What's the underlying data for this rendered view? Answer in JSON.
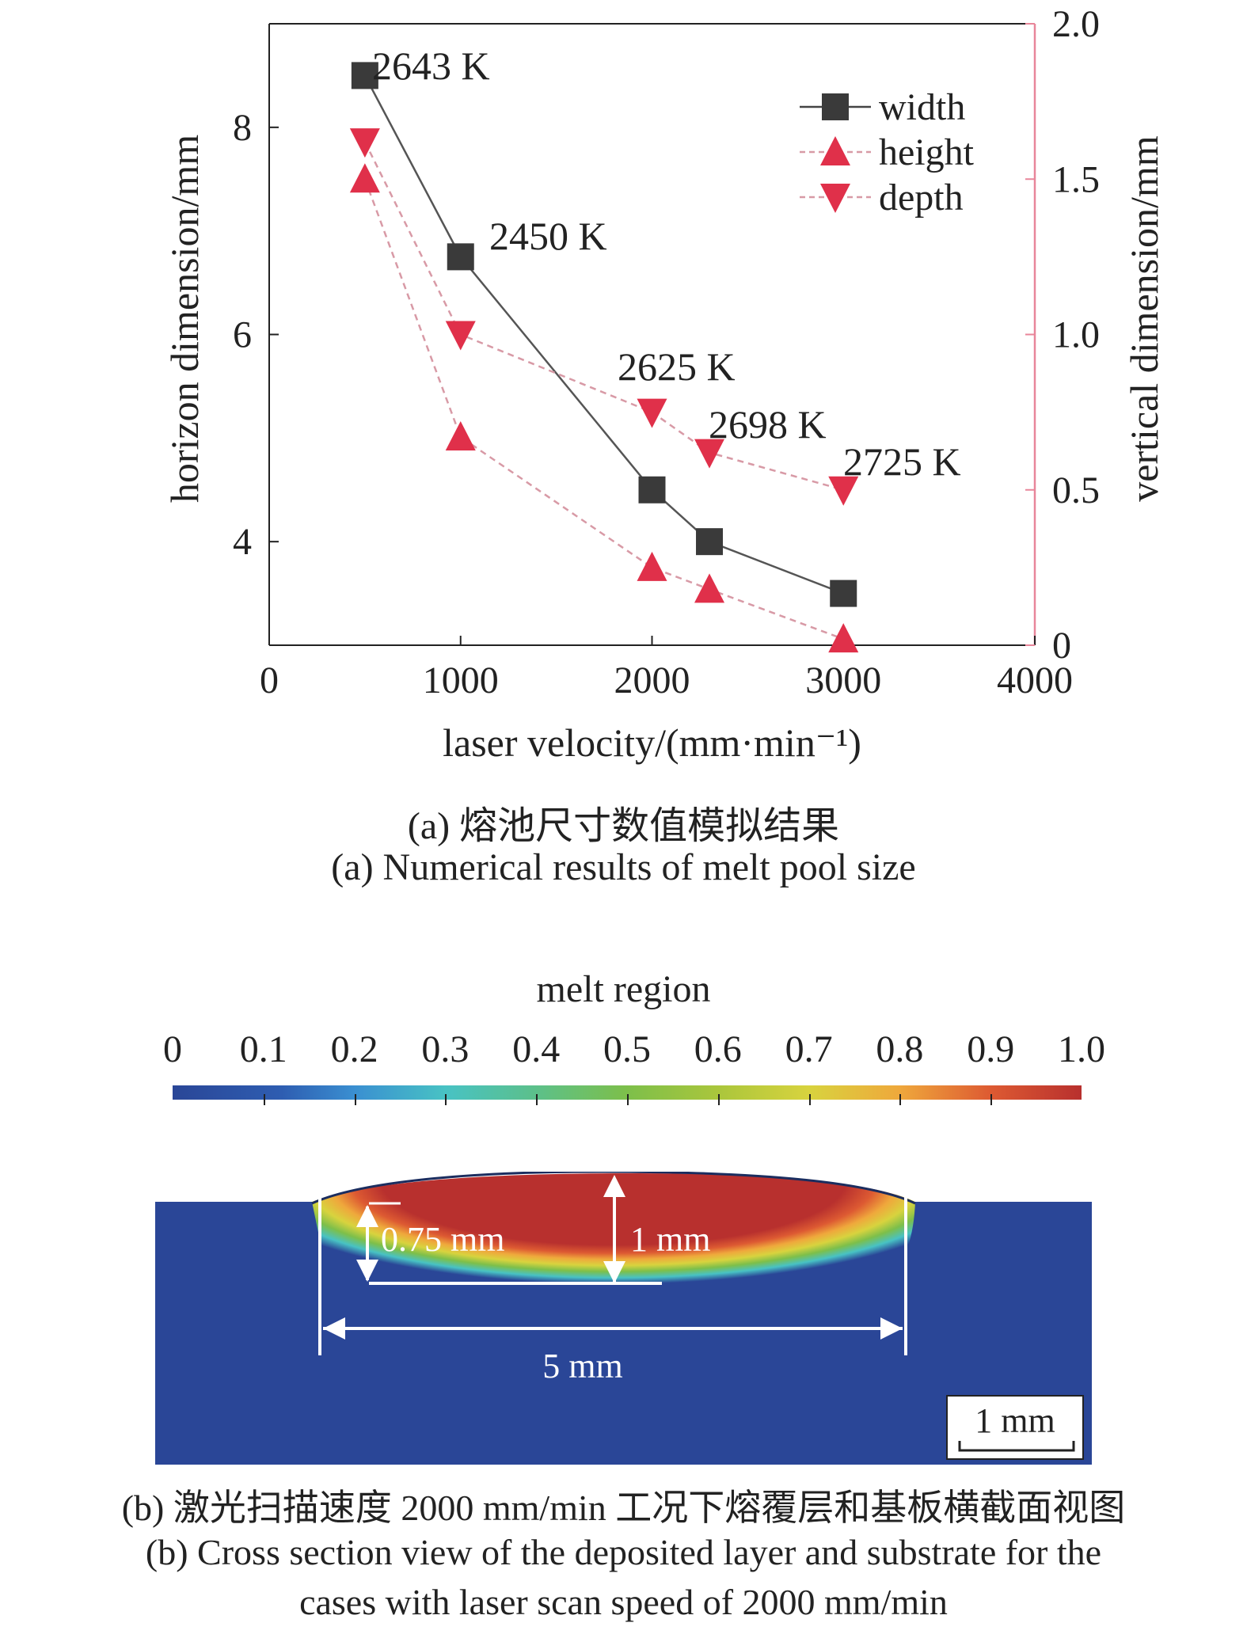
{
  "chart_data": {
    "type": "line",
    "x": [
      500,
      1000,
      2000,
      2300,
      3000
    ],
    "xlabel": "laser velocity/(mm·min⁻¹)",
    "xlim": [
      0,
      4000
    ],
    "xticks": [
      "0",
      "1000",
      "2000",
      "3000",
      "4000"
    ],
    "ylabel_left": "horizon dimension/mm",
    "ylim_left": [
      3,
      9
    ],
    "yticks_left": [
      "4",
      "6",
      "8"
    ],
    "ylabel_right": "vertical dimension/mm",
    "ylim_right": [
      0,
      2.0
    ],
    "yticks_right": [
      "0",
      "0.5",
      "1.0",
      "1.5",
      "2.0"
    ],
    "legend_position": "top-right",
    "grid": false,
    "series": [
      {
        "name": "width",
        "axis": "left",
        "marker": "square",
        "color": "#3a3a3a",
        "line": "solid",
        "values": [
          8.5,
          6.75,
          4.5,
          4.0,
          3.5
        ]
      },
      {
        "name": "height",
        "axis": "right",
        "marker": "triangle-up",
        "color": "#e0304a",
        "line": "dashed",
        "values": [
          1.5,
          0.67,
          0.25,
          0.18,
          0.02
        ]
      },
      {
        "name": "depth",
        "axis": "right",
        "marker": "triangle-down",
        "color": "#e0304a",
        "line": "dashed",
        "values": [
          1.62,
          1.0,
          0.75,
          0.62,
          0.5
        ]
      }
    ],
    "annotations": [
      "2643 K",
      "2450 K",
      "2625 K",
      "2698 K",
      "2725 K"
    ]
  },
  "captions": {
    "a_cn": "(a) 熔池尺寸数值模拟结果",
    "a_en": "(a) Numerical results of melt pool size",
    "b_cn": "(b) 激光扫描速度 2000 mm/min 工况下熔覆层和基板横截面视图",
    "b_en_line1": "(b) Cross section view of the deposited layer and substrate for the",
    "b_en_line2": "cases with laser scan speed of 2000 mm/min"
  },
  "colorbar": {
    "title": "melt region",
    "ticks": [
      "0",
      "0.1",
      "0.2",
      "0.3",
      "0.4",
      "0.5",
      "0.6",
      "0.7",
      "0.8",
      "0.9",
      "1.0"
    ]
  },
  "cross_section": {
    "label_075": "0.75 mm",
    "label_1": "1 mm",
    "label_5": "5 mm",
    "scale_bar": "1 mm",
    "colors": {
      "substrate": "#2a4697",
      "melt": "#b8302e",
      "annotation": "#ffffff"
    }
  }
}
